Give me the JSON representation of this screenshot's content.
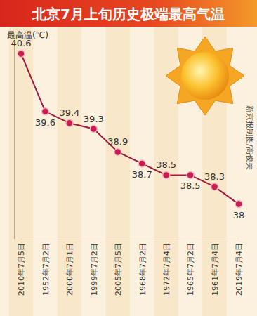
{
  "chart_data": {
    "type": "line",
    "title": "北京7月上旬历史极端最高气温",
    "y_label": "最高温(℃)",
    "annotations": [
      "新京报制图/高俊夫"
    ],
    "categories": [
      "2010年7月5日",
      "1952年7月2日",
      "2000年7月1日",
      "1999年7月2日",
      "2005年7月5日",
      "1968年7月2日",
      "1972年7月4日",
      "1965年7月2日",
      "1961年7月4日",
      "2019年7月4日"
    ],
    "values": [
      40.6,
      39.6,
      39.4,
      39.3,
      38.9,
      38.7,
      38.5,
      38.5,
      38.3,
      38
    ],
    "color": "#a3183c",
    "marker": "circle",
    "ylim": [
      37.4,
      40.8
    ],
    "yticks": [],
    "tick_labels": "x",
    "data_labels": true,
    "grid": false
  }
}
